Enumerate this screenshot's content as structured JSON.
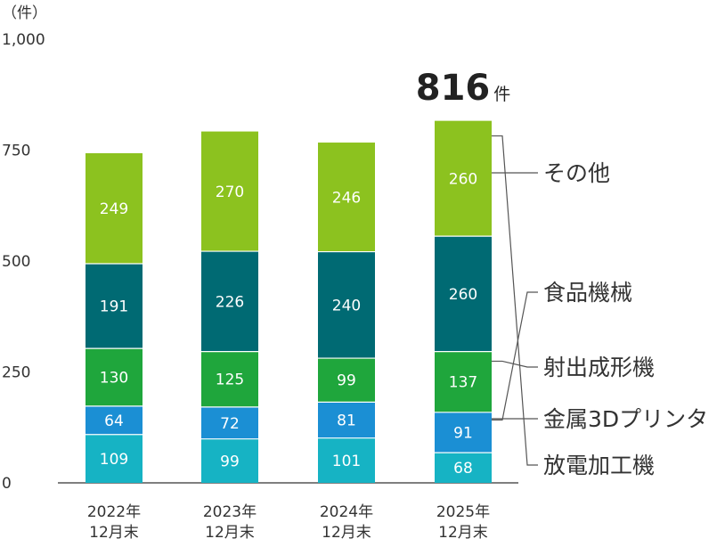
{
  "chart_data": {
    "type": "bar",
    "stacked": true,
    "unit_label": "（件）",
    "categories": [
      "2022年\n12月末",
      "2023年\n12月末",
      "2024年\n12月末",
      "2025年\n12月末"
    ],
    "series": [
      {
        "name": "その他",
        "values": [
          109,
          99,
          101,
          68
        ],
        "color": "#16b3c4",
        "label_color": "#ffffff"
      },
      {
        "name": "食品機械",
        "values": [
          64,
          72,
          81,
          91
        ],
        "color": "#1b8fd4",
        "label_color": "#ffffff"
      },
      {
        "name": "射出成形機",
        "values": [
          130,
          125,
          99,
          137
        ],
        "color": "#1fa63c",
        "label_color": "#ffffff"
      },
      {
        "name": "金属3Dプリンタ",
        "values": [
          191,
          226,
          240,
          260
        ],
        "color": "#006a73",
        "label_color": "#ffffff"
      },
      {
        "name": "放電加工機",
        "values": [
          249,
          270,
          246,
          260
        ],
        "color": "#8cc21f",
        "label_color": "#ffffff"
      }
    ],
    "ylim": [
      0,
      1000
    ],
    "yticks": [
      0,
      250,
      500,
      750,
      1000
    ],
    "ytick_labels": [
      "0",
      "250",
      "500",
      "750",
      "1,000"
    ],
    "highlight": {
      "category_index": 3,
      "value": "816",
      "unit": "件"
    },
    "legend_position": "right",
    "grid": false,
    "title": "",
    "xlabel": "",
    "ylabel": ""
  }
}
